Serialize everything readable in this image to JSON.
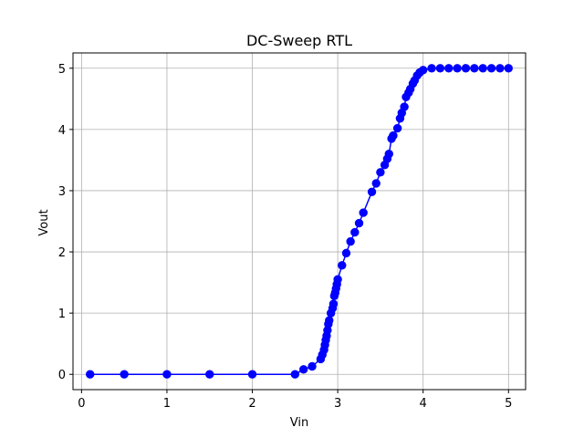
{
  "chart_data": {
    "type": "line",
    "title": "DC-Sweep RTL",
    "xlabel": "Vin",
    "ylabel": "Vout",
    "xlim": [
      -0.1,
      5.2
    ],
    "ylim": [
      -0.25,
      5.25
    ],
    "xticks": [
      0,
      1,
      2,
      3,
      4,
      5
    ],
    "yticks": [
      0,
      1,
      2,
      3,
      4,
      5
    ],
    "grid": true,
    "marker": "circle",
    "color": "#0000ff",
    "grid_color": "#b0b0b0",
    "series": [
      {
        "x": [
          0.1,
          0.5,
          1.0,
          1.5,
          2.0,
          2.5,
          2.6,
          2.7,
          2.8,
          2.82,
          2.84,
          2.85,
          2.86,
          2.87,
          2.88,
          2.89,
          2.9,
          2.92,
          2.94,
          2.95,
          2.96,
          2.97,
          2.98,
          2.99,
          3.0,
          3.05,
          3.1,
          3.15,
          3.2,
          3.25,
          3.3,
          3.4,
          3.45,
          3.5,
          3.55,
          3.58,
          3.6,
          3.63,
          3.65,
          3.7,
          3.73,
          3.75,
          3.78,
          3.8,
          3.83,
          3.85,
          3.88,
          3.9,
          3.93,
          3.96,
          4.0,
          4.1,
          4.2,
          4.3,
          4.4,
          4.5,
          4.6,
          4.7,
          4.8,
          4.9,
          5.0
        ],
        "y": [
          0,
          0,
          0,
          0,
          0,
          0,
          0.08,
          0.13,
          0.25,
          0.32,
          0.4,
          0.48,
          0.56,
          0.63,
          0.72,
          0.82,
          0.88,
          1.0,
          1.08,
          1.15,
          1.28,
          1.33,
          1.4,
          1.47,
          1.55,
          1.78,
          1.98,
          2.17,
          2.32,
          2.47,
          2.64,
          2.98,
          3.12,
          3.3,
          3.42,
          3.52,
          3.6,
          3.85,
          3.9,
          4.02,
          4.18,
          4.27,
          4.37,
          4.53,
          4.6,
          4.66,
          4.75,
          4.8,
          4.88,
          4.93,
          4.97,
          5.0,
          5.0,
          5.0,
          5.0,
          5.0,
          5.0,
          5.0,
          5.0,
          5.0,
          5.0
        ]
      }
    ]
  }
}
